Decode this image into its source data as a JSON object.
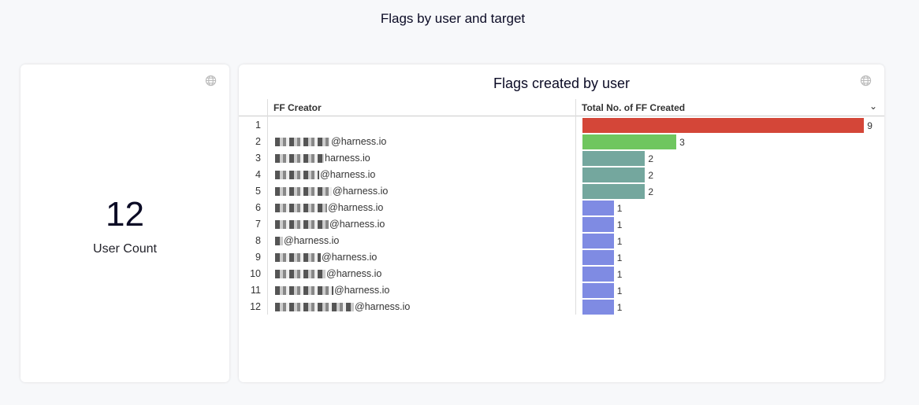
{
  "page": {
    "title": "Flags by user and target"
  },
  "kpi": {
    "value": "12",
    "label": "User Count",
    "icon": "globe-icon"
  },
  "table": {
    "title": "Flags created by user",
    "icon": "globe-icon",
    "columns": [
      "FF Creator",
      "Total No. of FF Created"
    ],
    "sort_icon": "chevron-down-icon",
    "colors": {
      "9": "#d44638",
      "3": "#6fc65f",
      "2": "#74a79e",
      "1": "#7f8be3"
    },
    "rows": [
      {
        "n": "1",
        "creator": "",
        "count": 9
      },
      {
        "n": "2",
        "creator": "@harness.io",
        "count": 3
      },
      {
        "n": "3",
        "creator": "harness.io",
        "count": 2
      },
      {
        "n": "4",
        "creator": "@harness.io",
        "count": 2
      },
      {
        "n": "5",
        "creator": "@harness.io",
        "count": 2
      },
      {
        "n": "6",
        "creator": "@harness.io",
        "count": 1
      },
      {
        "n": "7",
        "creator": "@harness.io",
        "count": 1
      },
      {
        "n": "8",
        "creator": "@harness.io",
        "count": 1
      },
      {
        "n": "9",
        "creator": "@harness.io",
        "count": 1
      },
      {
        "n": "10",
        "creator": "@harness.io",
        "count": 1
      },
      {
        "n": "11",
        "creator": "@harness.io",
        "count": 1
      },
      {
        "n": "12",
        "creator": "@harness.io",
        "count": 1
      }
    ]
  }
}
